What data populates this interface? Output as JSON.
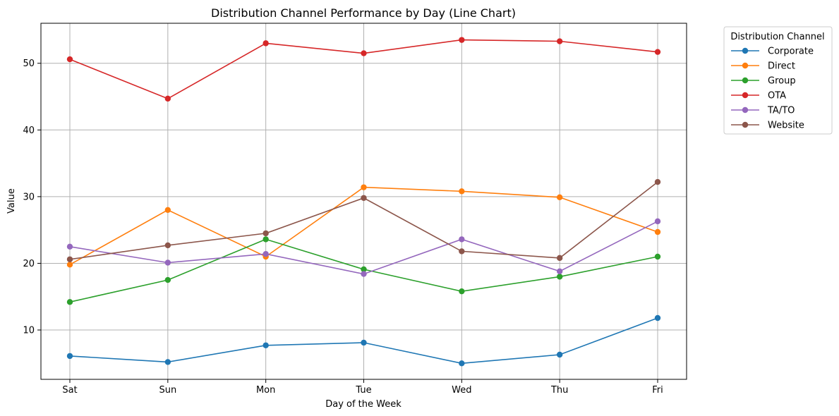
{
  "chart_data": {
    "type": "line",
    "title": "Distribution Channel Performance by Day (Line Chart)",
    "xlabel": "Day of the Week",
    "ylabel": "Value",
    "categories": [
      "Sat",
      "Sun",
      "Mon",
      "Tue",
      "Wed",
      "Thu",
      "Fri"
    ],
    "ylim": [
      2.6,
      56.0
    ],
    "yticks": [
      10,
      20,
      30,
      40,
      50
    ],
    "grid": true,
    "legend": {
      "title": "Distribution Channel",
      "placement": "outside-right"
    },
    "series": [
      {
        "name": "Corporate",
        "color": "#1f77b4",
        "values": [
          6.1,
          5.2,
          7.7,
          8.1,
          5.0,
          6.3,
          11.8
        ]
      },
      {
        "name": "Direct",
        "color": "#ff7f0e",
        "values": [
          19.8,
          28.0,
          21.0,
          31.4,
          30.8,
          29.9,
          24.7
        ]
      },
      {
        "name": "Group",
        "color": "#2ca02c",
        "values": [
          14.2,
          17.5,
          23.6,
          19.1,
          15.8,
          18.0,
          21.0
        ]
      },
      {
        "name": "OTA",
        "color": "#d62728",
        "values": [
          50.6,
          44.7,
          53.0,
          51.5,
          53.5,
          53.3,
          51.7
        ]
      },
      {
        "name": "TA/TO",
        "color": "#9467bd",
        "values": [
          22.5,
          20.1,
          21.4,
          18.4,
          23.6,
          18.8,
          26.3
        ]
      },
      {
        "name": "Website",
        "color": "#8c564b",
        "values": [
          20.6,
          22.7,
          24.5,
          29.8,
          21.8,
          20.8,
          32.2
        ]
      }
    ]
  }
}
